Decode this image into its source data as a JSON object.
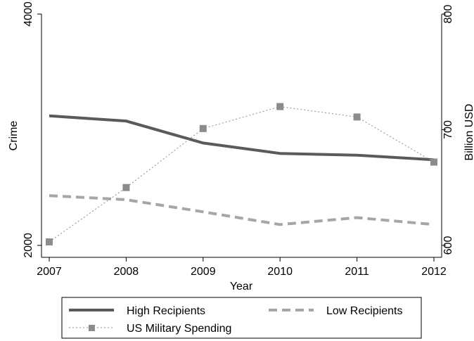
{
  "chart_data": {
    "type": "line",
    "x": [
      2007,
      2008,
      2009,
      2010,
      2011,
      2012
    ],
    "xlabel": "Year",
    "ylabel_left": "Crime",
    "ylabel_right": "Billion USD",
    "ylim_left": [
      2000,
      4000
    ],
    "yticks_left": [
      "2000",
      "4000"
    ],
    "ylim_right": [
      600,
      800
    ],
    "yticks_right": [
      "600",
      "700",
      "800"
    ],
    "grid": false,
    "legend_position": "bottom",
    "series": [
      {
        "name": "High Recipients",
        "axis": "left",
        "style": "solid",
        "color": "#5a5a5a",
        "values": [
          3120,
          3075,
          2885,
          2795,
          2780,
          2740
        ]
      },
      {
        "name": "Low Recipients",
        "axis": "left",
        "style": "dashed",
        "color": "#a6a6a6",
        "values": [
          2430,
          2395,
          2290,
          2180,
          2240,
          2180
        ]
      },
      {
        "name": "US Military Spending",
        "axis": "right",
        "style": "dotted-square",
        "color": "#8c8c8c",
        "values": [
          603,
          650,
          701,
          720,
          711,
          672
        ]
      }
    ]
  }
}
